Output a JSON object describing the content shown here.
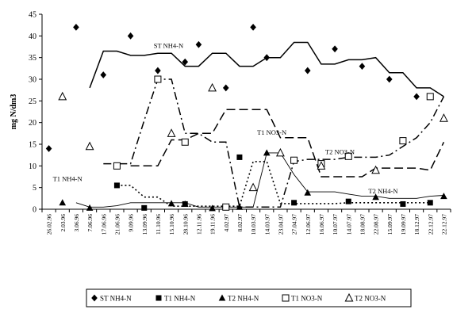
{
  "chart_data": {
    "type": "line",
    "ylabel": "mg N/dm3",
    "ylim": [
      0,
      45
    ],
    "yticks": [
      0,
      5,
      10,
      15,
      20,
      25,
      30,
      35,
      40,
      45
    ],
    "grid": false,
    "legend_position": "bottom",
    "categories": [
      "26.02.96",
      "2.03.96",
      "3.06.96",
      "7.06.96",
      "17.06.96",
      "21.06.96",
      "9.09.96",
      "13.09.96",
      "11.10.96",
      "15.10.96",
      "28.10.96",
      "12.11.96",
      "19.11.96",
      "4.02.97",
      "8.02.97",
      "10.03.97",
      "14.03.97",
      "23.04.97",
      "27.04.97",
      "12.06.97",
      "16.06.97",
      "10.07.97",
      "14.07.97",
      "18.08.97",
      "22.08.97",
      "15.09.97",
      "19.09.97",
      "18.12.97",
      "22.12.97",
      "22.12.97"
    ],
    "points": [
      {
        "name": "ST NH4-N",
        "marker": "diamond",
        "values": [
          14,
          null,
          42,
          null,
          31,
          null,
          40,
          null,
          32,
          null,
          34,
          38,
          null,
          28,
          null,
          42,
          35,
          null,
          null,
          32,
          null,
          37,
          null,
          33,
          null,
          30,
          null,
          26,
          null,
          null
        ]
      },
      {
        "name": "T1 NH4-N",
        "marker": "square",
        "values": [
          null,
          null,
          null,
          null,
          null,
          5.5,
          null,
          0.3,
          null,
          null,
          1.2,
          null,
          null,
          null,
          12,
          null,
          null,
          null,
          1.5,
          null,
          null,
          null,
          1.8,
          null,
          null,
          null,
          1.2,
          null,
          1.5,
          null
        ]
      },
      {
        "name": "T2 NH4-N",
        "marker": "triangle",
        "values": [
          null,
          1.5,
          null,
          0.3,
          null,
          null,
          null,
          null,
          null,
          1.3,
          1.2,
          null,
          0.2,
          null,
          0.5,
          null,
          13,
          null,
          null,
          3.8,
          null,
          null,
          null,
          null,
          2.8,
          null,
          null,
          null,
          null,
          3
        ]
      },
      {
        "name": "T1 NO3-N",
        "marker": "open-square",
        "values": [
          null,
          null,
          null,
          null,
          null,
          10,
          null,
          null,
          30,
          null,
          15.5,
          null,
          null,
          0.5,
          null,
          null,
          null,
          null,
          11.3,
          null,
          10.5,
          null,
          12.2,
          null,
          null,
          null,
          15.8,
          null,
          26,
          null
        ]
      },
      {
        "name": "T2 NO3-N",
        "marker": "open-triangle",
        "values": [
          null,
          26,
          null,
          14.5,
          null,
          null,
          null,
          null,
          null,
          17.5,
          null,
          null,
          28,
          null,
          null,
          5,
          null,
          13,
          null,
          null,
          10,
          null,
          null,
          null,
          9,
          null,
          null,
          null,
          null,
          21
        ]
      }
    ],
    "lines": [
      {
        "label": "ST NH4-N",
        "dash": "solid",
        "values": [
          null,
          null,
          null,
          28,
          36.5,
          36.5,
          35.5,
          35.5,
          36,
          36,
          33,
          33,
          36,
          36,
          33,
          33,
          35,
          35,
          38.5,
          38.5,
          33.5,
          33.5,
          34.5,
          34.5,
          35,
          31.5,
          31.5,
          28,
          28,
          26
        ]
      },
      {
        "label": "T1 NH4-N",
        "dash": "dot",
        "values": [
          null,
          null,
          null,
          null,
          null,
          5.5,
          5.5,
          2.8,
          2.8,
          0.7,
          0.7,
          0.7,
          0.7,
          0.7,
          0.7,
          11,
          11,
          1.3,
          1.3,
          1.3,
          1.3,
          1.3,
          1.5,
          1.5,
          1.5,
          1.5,
          1.5,
          1.5,
          1.5,
          null
        ]
      },
      {
        "label": "T2 NH4-N",
        "dash": "solid-thin",
        "values": [
          null,
          null,
          1.5,
          0.5,
          0.5,
          0.8,
          1.5,
          1.5,
          1.5,
          1.5,
          1.5,
          0.5,
          0.5,
          0.5,
          0.5,
          0.5,
          13,
          13,
          8,
          4,
          4,
          4,
          3.5,
          3,
          3,
          2.5,
          2.5,
          2.5,
          3,
          3.2
        ]
      },
      {
        "label": "T1 NO3-N",
        "dash": "long-dash",
        "values": [
          null,
          null,
          null,
          null,
          null,
          null,
          10,
          10,
          10,
          16,
          16,
          17.5,
          17.5,
          23,
          23,
          23,
          23,
          16.5,
          16.5,
          16.5,
          7.5,
          7.5,
          7.5,
          7.5,
          9.5,
          9.5,
          9.5,
          9.5,
          9,
          15.5
        ]
      },
      {
        "label": "T2 NO3-N",
        "dash": "dash-dot",
        "values": [
          null,
          null,
          null,
          null,
          10.5,
          10.5,
          10.5,
          20.5,
          30,
          30,
          17.5,
          17.5,
          15.5,
          15.5,
          0.5,
          0.5,
          0.5,
          0.5,
          11,
          11.5,
          11.5,
          11.5,
          12,
          12,
          12,
          12.5,
          14.5,
          16.5,
          20,
          26
        ]
      }
    ],
    "annotations": [
      "ST NH4-N",
      "T1 NO3-N",
      "T2 NO3-N",
      "T1 NH4-N",
      "T2 NH4-N"
    ],
    "legend": [
      "ST NH4-N",
      "T1 NH4-N",
      "T2 NH4-N",
      "T1 NO3-N",
      "T2 NO3-N"
    ]
  }
}
